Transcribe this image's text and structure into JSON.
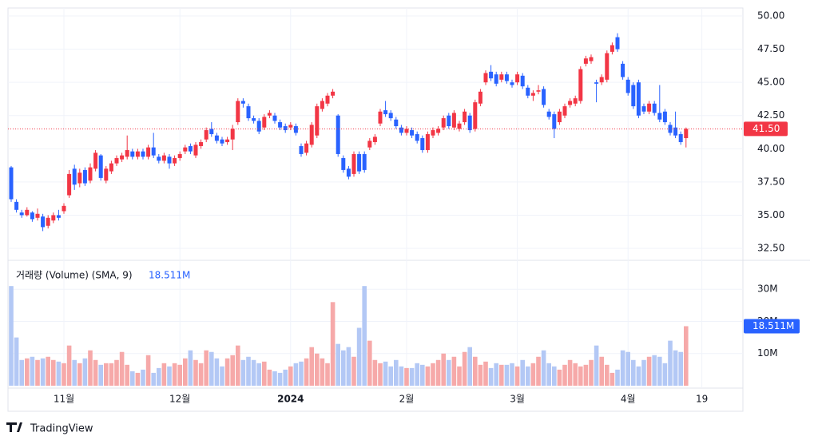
{
  "chart_data": {
    "type": "candlestick",
    "up_color": "#f23645",
    "down_color": "#2962ff",
    "volume_up_color": "#f6a9a9",
    "volume_down_color": "#b3c8f5",
    "open": [
      38.6,
      36.0,
      35.2,
      35.0,
      35.2,
      34.8,
      34.9,
      34.2,
      34.6,
      35.0,
      35.3,
      36.5,
      38.5,
      37.4,
      38.4,
      37.6,
      38.5,
      39.5,
      37.6,
      38.3,
      38.9,
      39.2,
      39.4,
      39.8,
      39.4,
      39.8,
      39.4,
      40.1,
      39.4,
      39.1,
      39.4,
      38.9,
      39.3,
      39.8,
      40.2,
      39.5,
      40.2,
      40.7,
      41.5,
      41.0,
      40.7,
      40.5,
      40.7,
      42.0,
      43.6,
      43.2,
      42.3,
      42.1,
      41.6,
      42.5,
      42.5,
      42.0,
      41.7,
      41.6,
      41.7,
      40.2,
      39.7,
      40.3,
      41.0,
      43.0,
      43.4,
      44.0,
      42.5,
      39.3,
      38.5,
      38.1,
      39.6,
      39.6,
      40.1,
      40.5,
      41.9,
      42.9,
      42.7,
      42.2,
      41.6,
      41.2,
      41.4,
      41.1,
      40.8,
      39.9,
      41.0,
      41.2,
      41.6,
      42.5,
      41.6,
      41.5,
      42.0,
      42.5,
      41.5,
      43.4,
      45.0,
      45.8,
      45.6,
      45.2,
      45.6,
      45.0,
      45.0,
      45.5,
      44.6,
      44.0,
      44.3,
      44.5,
      42.8,
      42.6,
      42.0,
      42.5,
      43.3,
      43.4,
      43.6,
      46.4,
      46.6,
      45.0,
      45.0,
      45.2,
      47.3,
      48.4,
      46.4,
      45.2,
      44.8,
      45.0,
      43.2,
      42.8,
      43.4,
      42.7,
      42.8,
      41.8,
      41.6,
      41.1,
      40.8
    ],
    "high": [
      38.7,
      36.2,
      35.4,
      35.6,
      35.3,
      35.5,
      35.1,
      35.0,
      35.2,
      35.4,
      35.9,
      38.4,
      38.8,
      38.5,
      38.6,
      38.9,
      39.9,
      39.6,
      38.7,
      39.1,
      39.5,
      39.7,
      41.0,
      40.0,
      40.0,
      40.0,
      40.3,
      41.2,
      39.6,
      39.7,
      39.6,
      39.5,
      39.8,
      40.3,
      40.4,
      40.5,
      40.7,
      41.6,
      42.0,
      41.2,
      40.9,
      40.9,
      41.8,
      43.8,
      43.8,
      43.4,
      42.5,
      42.3,
      42.6,
      42.9,
      42.7,
      42.2,
      41.9,
      42.0,
      41.9,
      40.4,
      40.6,
      42.0,
      43.4,
      43.8,
      44.2,
      44.5,
      42.6,
      39.5,
      38.7,
      39.8,
      39.8,
      39.8,
      40.8,
      41.1,
      43.0,
      43.6,
      42.9,
      42.4,
      41.8,
      41.7,
      41.6,
      41.3,
      41.0,
      41.3,
      41.6,
      41.7,
      42.5,
      42.7,
      42.9,
      42.1,
      43.0,
      42.7,
      43.7,
      44.5,
      45.9,
      46.3,
      45.8,
      45.8,
      45.8,
      45.2,
      45.8,
      45.7,
      44.8,
      44.4,
      44.8,
      44.7,
      43.0,
      42.8,
      43.0,
      43.4,
      43.8,
      44.0,
      46.2,
      47.0,
      47.1,
      45.2,
      45.6,
      47.4,
      48.0,
      48.7,
      46.6,
      45.4,
      45.0,
      45.2,
      43.4,
      43.6,
      43.6,
      44.8,
      43.0,
      42.0,
      42.8,
      41.3,
      41.6
    ],
    "low": [
      36.0,
      35.2,
      34.8,
      34.9,
      34.5,
      34.6,
      33.8,
      34.0,
      34.4,
      34.6,
      35.1,
      36.3,
      36.9,
      37.1,
      37.2,
      37.4,
      38.3,
      37.6,
      37.4,
      38.1,
      38.7,
      39.0,
      39.2,
      39.2,
      39.2,
      39.2,
      39.2,
      39.3,
      38.9,
      38.9,
      38.5,
      38.7,
      39.1,
      39.6,
      39.6,
      39.3,
      40.0,
      40.5,
      40.9,
      40.4,
      40.2,
      40.3,
      39.9,
      41.8,
      43.1,
      42.1,
      41.9,
      41.1,
      41.4,
      42.3,
      41.9,
      41.4,
      41.2,
      41.4,
      41.0,
      39.4,
      39.5,
      40.1,
      40.8,
      42.8,
      43.2,
      43.8,
      39.4,
      38.2,
      37.7,
      37.9,
      38.1,
      38.2,
      39.9,
      40.3,
      41.7,
      42.4,
      42.1,
      41.5,
      41.0,
      41.0,
      40.8,
      40.4,
      39.7,
      39.7,
      40.8,
      41.0,
      41.4,
      41.5,
      41.4,
      41.3,
      41.8,
      41.2,
      41.3,
      43.2,
      44.8,
      45.1,
      44.7,
      45.0,
      44.9,
      44.6,
      44.8,
      44.5,
      43.8,
      43.6,
      44.1,
      43.1,
      42.2,
      40.8,
      41.8,
      42.3,
      43.1,
      43.2,
      43.4,
      46.2,
      46.4,
      43.5,
      44.8,
      45.0,
      47.1,
      47.3,
      45.2,
      44.0,
      43.0,
      42.3,
      42.6,
      42.6,
      42.5,
      42.0,
      41.8,
      41.0,
      40.8,
      40.3,
      40.1
    ],
    "close": [
      36.2,
      35.4,
      35.0,
      35.4,
      34.7,
      35.1,
      34.1,
      34.8,
      35.0,
      34.8,
      35.7,
      38.1,
      37.3,
      38.2,
      37.4,
      38.6,
      39.7,
      37.8,
      38.5,
      38.9,
      39.3,
      39.5,
      39.9,
      39.4,
      39.8,
      39.4,
      40.1,
      39.5,
      39.1,
      39.5,
      38.9,
      39.3,
      39.6,
      40.1,
      39.8,
      40.3,
      40.5,
      41.4,
      41.1,
      40.6,
      40.4,
      40.7,
      41.5,
      43.6,
      43.4,
      42.3,
      42.1,
      41.3,
      42.4,
      42.7,
      42.1,
      41.6,
      41.4,
      41.8,
      41.2,
      39.6,
      40.4,
      41.8,
      43.2,
      43.6,
      44.0,
      44.3,
      39.6,
      38.4,
      37.9,
      39.6,
      38.3,
      38.4,
      40.6,
      40.9,
      42.8,
      42.6,
      42.3,
      41.7,
      41.2,
      41.5,
      41.0,
      40.6,
      39.9,
      41.1,
      41.4,
      41.5,
      42.3,
      41.7,
      42.7,
      41.9,
      42.8,
      41.4,
      43.5,
      44.3,
      45.7,
      45.3,
      44.9,
      45.6,
      45.1,
      44.8,
      45.6,
      44.7,
      44.0,
      44.2,
      44.4,
      43.3,
      42.4,
      41.5,
      42.8,
      43.2,
      43.6,
      43.8,
      46.0,
      46.8,
      46.9,
      44.9,
      45.4,
      47.2,
      47.8,
      47.5,
      45.4,
      44.2,
      43.2,
      42.5,
      42.8,
      43.4,
      42.7,
      42.2,
      42.0,
      41.2,
      41.0,
      40.5,
      41.5
    ],
    "volume": [
      31,
      15,
      8,
      8.5,
      9,
      8,
      8.5,
      9,
      8,
      7.5,
      7,
      12.5,
      8,
      7,
      8.5,
      11,
      8,
      6.5,
      7,
      7,
      8,
      10.5,
      6.5,
      4.5,
      4,
      5,
      9.5,
      4,
      5.5,
      7,
      6,
      7,
      6.5,
      8.5,
      11,
      8,
      7,
      11,
      10.5,
      8.5,
      6,
      8.5,
      9.5,
      12.5,
      8,
      9,
      8,
      7,
      7.5,
      5,
      4.5,
      4,
      5,
      6,
      7,
      7.5,
      8.5,
      12,
      10,
      8.5,
      7,
      26,
      13,
      11,
      12,
      9,
      18,
      31,
      14,
      8,
      7,
      7.5,
      6,
      8,
      6,
      5.5,
      5.5,
      7,
      6.5,
      6,
      7,
      8,
      10,
      8,
      9,
      6,
      10.5,
      12,
      9,
      6.5,
      7.5,
      5.5,
      7,
      6.5,
      6.5,
      7,
      6,
      8,
      6,
      7,
      9,
      11,
      7,
      6,
      5,
      6.5,
      8,
      7,
      6,
      6.5,
      8,
      12.5,
      9,
      6.5,
      4,
      5,
      11,
      10.5,
      8,
      6,
      8,
      9,
      9.5,
      9,
      7,
      14,
      11,
      10.5,
      18.511
    ],
    "ylim": [
      31.6,
      50.6
    ],
    "yticks": [
      {
        "value": 32.5,
        "label": "32.50"
      },
      {
        "value": 35,
        "label": "35.00"
      },
      {
        "value": 37.5,
        "label": "37.50"
      },
      {
        "value": 40,
        "label": "40.00"
      },
      {
        "value": 42.5,
        "label": "42.50"
      },
      {
        "value": 45,
        "label": "45.00"
      },
      {
        "value": 47.5,
        "label": "47.50"
      },
      {
        "value": 50,
        "label": "50.00"
      }
    ],
    "volume_ylim": [
      0,
      38
    ],
    "volume_yticks": [
      {
        "value": 10,
        "label": "10M"
      },
      {
        "value": 20,
        "label": "20M"
      },
      {
        "value": 30,
        "label": "30M"
      }
    ],
    "xticks": [
      {
        "value": 10,
        "label": "11월"
      },
      {
        "value": 32,
        "label": "12월"
      },
      {
        "value": 53,
        "label": "2024"
      },
      {
        "value": 75,
        "label": "2월"
      },
      {
        "value": 96,
        "label": "3월"
      },
      {
        "value": 117,
        "label": "4월"
      },
      {
        "value": 131,
        "label": "19"
      }
    ],
    "last_price": {
      "value": 41.5,
      "label": "41.50"
    },
    "volume_title": "거래량 (Volume) (SMA, 9)",
    "last_volume": {
      "value": 18.511,
      "label": "18.511M"
    },
    "brand": "TradingView"
  }
}
